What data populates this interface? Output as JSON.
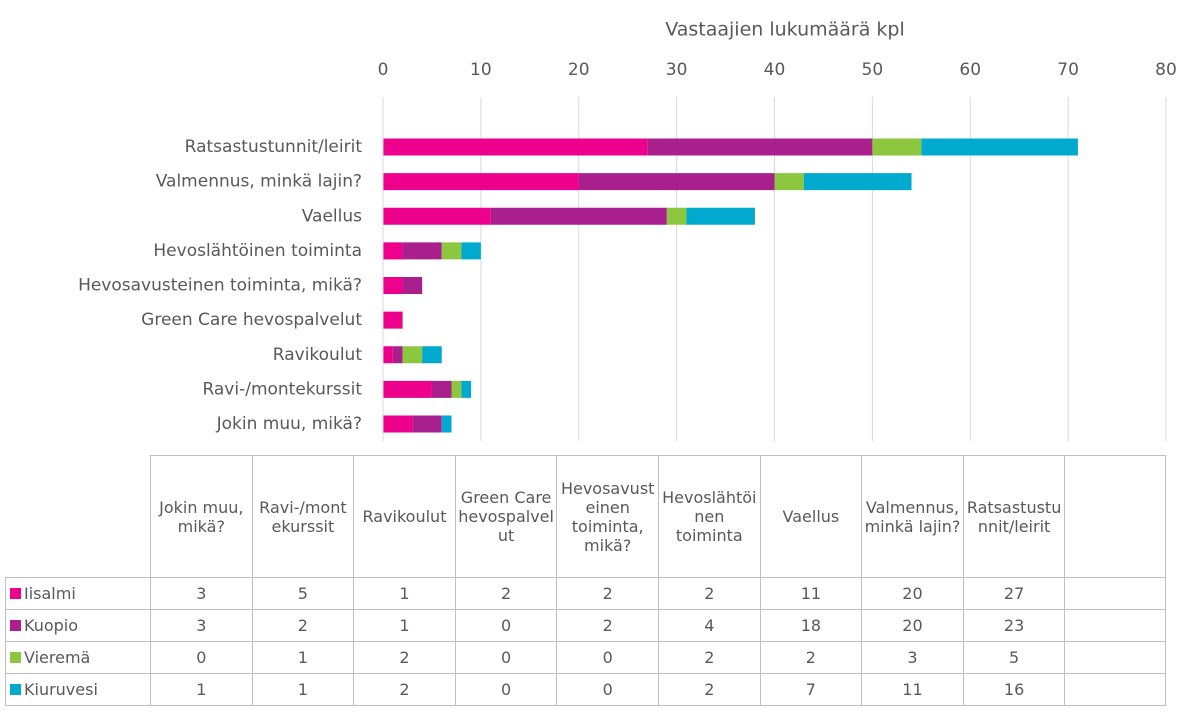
{
  "chart_data": {
    "type": "stacked_bar_horizontal",
    "x_axis_label": "Vastaajien lukumäärä kpl",
    "categories": [
      "Jokin muu, mikä?",
      "Ravi-/montekurssit",
      "Ravikoulut",
      "Green Care hevospalvelut",
      "Hevosavusteinen toiminta, mikä?",
      "Hevoslähtöinen toiminta",
      "Vaellus",
      "Valmennus, minkä lajin?",
      "Ratsastustunnit/leirit"
    ],
    "series": [
      {
        "name": "Iisalmi",
        "color": "#ec008c",
        "values": [
          3,
          5,
          1,
          2,
          2,
          2,
          11,
          20,
          27
        ]
      },
      {
        "name": "Kuopio",
        "color": "#aa1f8e",
        "values": [
          3,
          2,
          1,
          0,
          2,
          4,
          18,
          20,
          23
        ]
      },
      {
        "name": "Vieremä",
        "color": "#8dc63f",
        "values": [
          0,
          1,
          2,
          0,
          0,
          2,
          2,
          3,
          5
        ]
      },
      {
        "name": "Kiuruvesi",
        "color": "#00a9ce",
        "values": [
          1,
          1,
          2,
          0,
          0,
          2,
          7,
          11,
          16
        ]
      }
    ],
    "xlim": [
      0,
      80
    ],
    "xticks": [
      0,
      10,
      20,
      30,
      40,
      50,
      60,
      70,
      80
    ],
    "grid": true,
    "data_table": true
  }
}
